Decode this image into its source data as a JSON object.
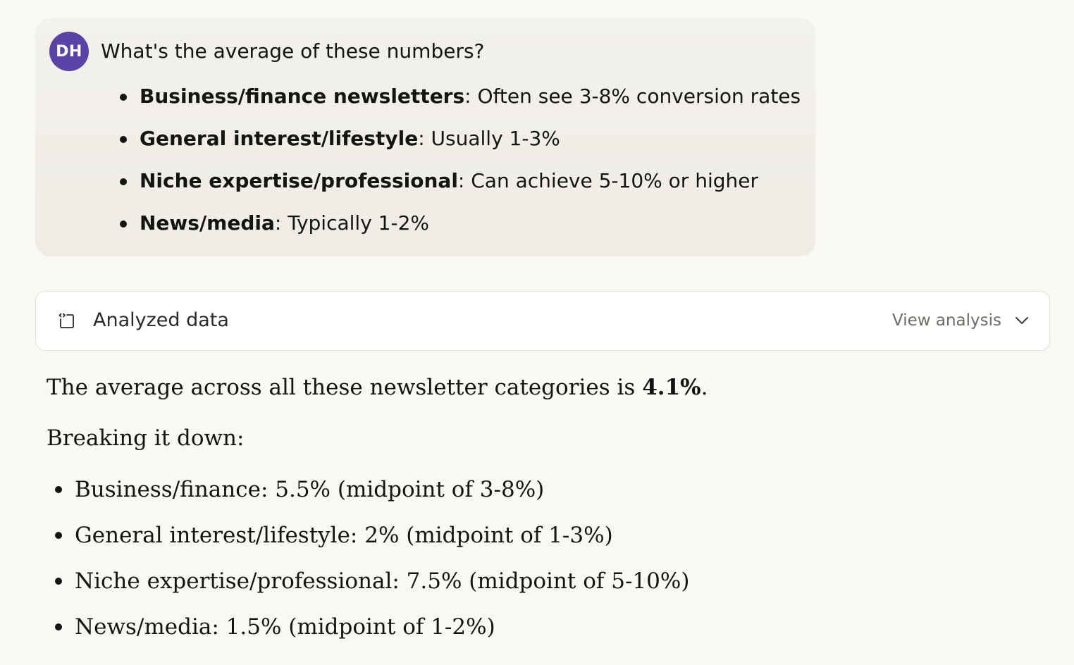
{
  "user_message": {
    "avatar_initials": "DH",
    "avatar_color": "#5a43a6",
    "question": "What's the average of these numbers?",
    "items": [
      {
        "term": "Business/finance newsletters",
        "detail": ": Often see 3-8% conversion rates"
      },
      {
        "term": "General interest/lifestyle",
        "detail": ": Usually 1-3%"
      },
      {
        "term": "Niche expertise/professional",
        "detail": ": Can achieve 5-10% or higher"
      },
      {
        "term": "News/media",
        "detail": ": Typically 1-2%"
      }
    ]
  },
  "analysis_card": {
    "icon": "code-file-icon",
    "label": "Analyzed data",
    "toggle_label": "View analysis",
    "toggle_icon": "chevron-down-icon"
  },
  "response": {
    "summary_prefix": "The average across all these newsletter categories is ",
    "summary_value": "4.1%",
    "summary_suffix": ".",
    "intro": "Breaking it down:",
    "items": [
      "Business/finance: 5.5% (midpoint of 3-8%)",
      "General interest/lifestyle: 2% (midpoint of 1-3%)",
      "Niche expertise/professional: 7.5% (midpoint of 5-10%)",
      "News/media: 1.5% (midpoint of 1-2%)"
    ]
  }
}
